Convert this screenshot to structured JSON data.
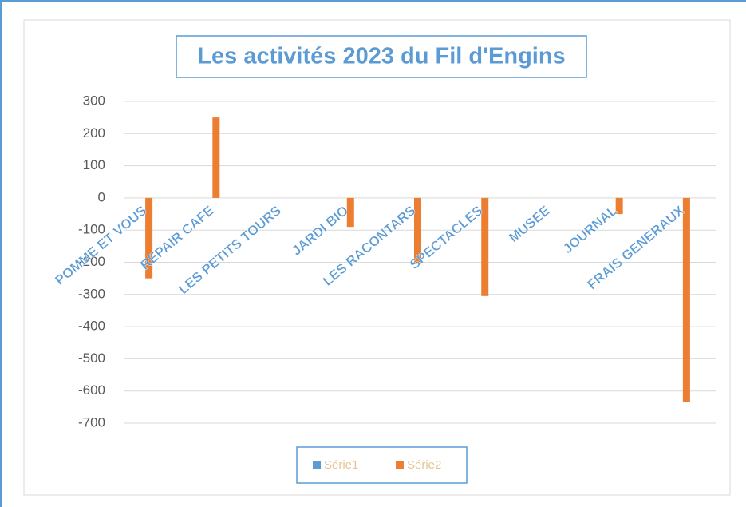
{
  "chart_data": {
    "type": "bar",
    "title": "Les activités 2023 du Fil d'Engins",
    "categories": [
      "POMME ET VOUS",
      "REPAIR CAFE",
      "LES PETITS TOURS",
      "JARDI BIO",
      "LES RACONTARS",
      "SPECTACLES",
      "MUSEE",
      "JOURNAL",
      "FRAIS GENERAUX"
    ],
    "series": [
      {
        "name": "Série1",
        "color": "#5b9bd5",
        "values": [
          null,
          null,
          null,
          null,
          null,
          null,
          null,
          null,
          null
        ]
      },
      {
        "name": "Série2",
        "color": "#ed7d31",
        "values": [
          -250,
          250,
          null,
          -90,
          -205,
          -305,
          null,
          -50,
          -635
        ]
      }
    ],
    "ylim": [
      -700,
      300
    ],
    "yticks": [
      300,
      200,
      100,
      0,
      -100,
      -200,
      -300,
      -400,
      -500,
      -600,
      -700
    ],
    "grid": true,
    "legend": "bottom"
  }
}
